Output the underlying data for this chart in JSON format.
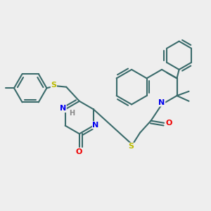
{
  "bg_color": "#eeeeee",
  "bond_color": "#3a6b6b",
  "lw": 1.5,
  "dbo": 0.012,
  "fs": 7.5,
  "atom_colors": {
    "N": "#0000ee",
    "O": "#ee0000",
    "S": "#bbbb00",
    "H": "#888888"
  },
  "figsize": [
    3.0,
    3.0
  ],
  "dpi": 100
}
